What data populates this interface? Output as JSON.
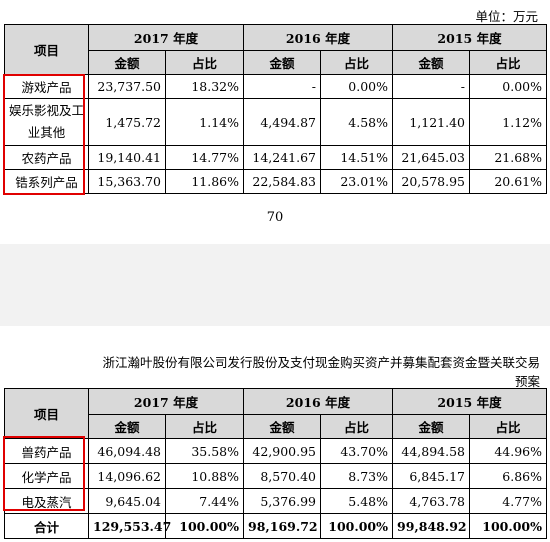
{
  "unit_label": "单位：万元",
  "page_number": "70",
  "doc_title": "浙江瀚叶股份有限公司发行股份及支付现金购买资产并募集配套资金暨关联交易预案",
  "header": {
    "item": "项目",
    "years": [
      "2017 年度",
      "2016 年度",
      "2015 年度"
    ],
    "amount": "金额",
    "ratio": "占比"
  },
  "table1": {
    "rows": [
      {
        "name": "游戏产品",
        "v": [
          "23,737.50",
          "18.32%",
          "-",
          "0.00%",
          "-",
          "0.00%"
        ]
      },
      {
        "name": "娱乐影视及工业其他",
        "v": [
          "1,475.72",
          "1.14%",
          "4,494.87",
          "4.58%",
          "1,121.40",
          "1.12%"
        ]
      },
      {
        "name": "农药产品",
        "v": [
          "19,140.41",
          "14.77%",
          "14,241.67",
          "14.51%",
          "21,645.03",
          "21.68%"
        ]
      },
      {
        "name": "锆系列产品",
        "v": [
          "15,363.70",
          "11.86%",
          "22,584.83",
          "23.01%",
          "20,578.95",
          "20.61%"
        ]
      }
    ]
  },
  "table2": {
    "rows": [
      {
        "name": "兽药产品",
        "v": [
          "46,094.48",
          "35.58%",
          "42,900.95",
          "43.70%",
          "44,894.58",
          "44.96%"
        ]
      },
      {
        "name": "化学产品",
        "v": [
          "14,096.62",
          "10.88%",
          "8,570.40",
          "8.73%",
          "6,845.17",
          "6.86%"
        ]
      },
      {
        "name": "电及蒸汽",
        "v": [
          "9,645.04",
          "7.44%",
          "5,376.99",
          "5.48%",
          "4,763.78",
          "4.77%"
        ]
      }
    ],
    "total": {
      "name": "合计",
      "v": [
        "129,553.47",
        "100.00%",
        "98,169.72",
        "100.00%",
        "99,848.92",
        "100.00%"
      ]
    }
  }
}
